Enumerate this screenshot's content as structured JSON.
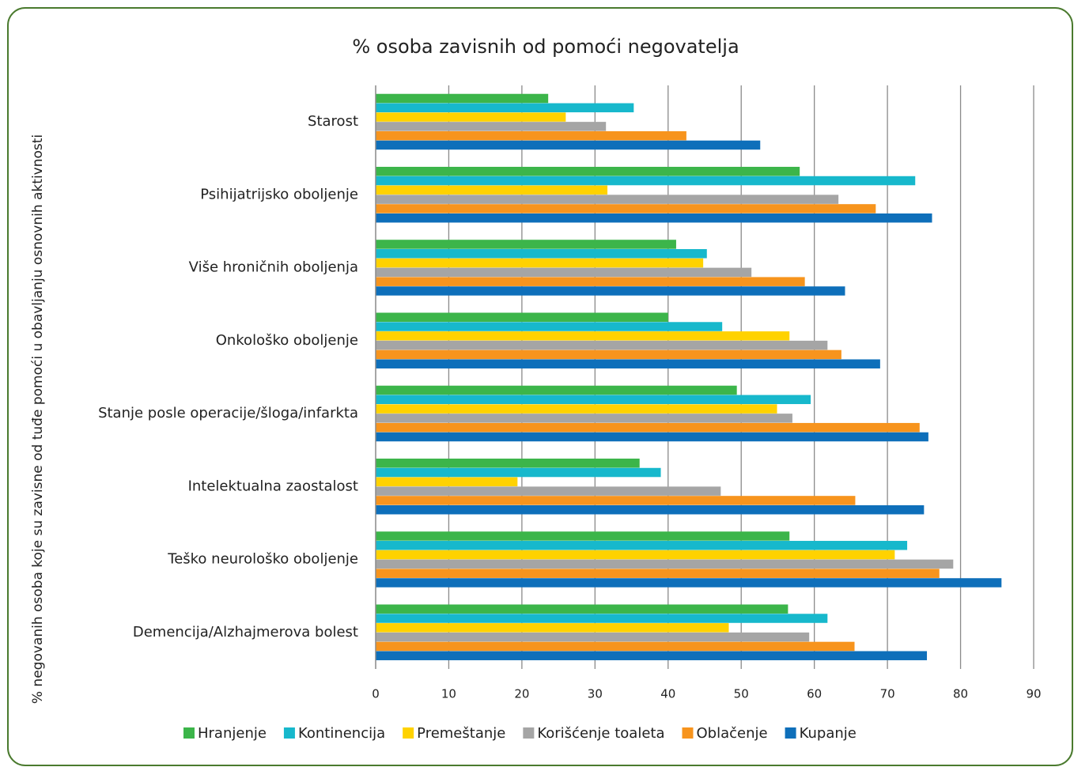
{
  "chart_data": {
    "type": "bar",
    "orientation": "horizontal",
    "title": "% osoba zavisnih od pomoći negovatelja",
    "y_label": "% negovanih osoba koje su zavisne od tuđe pomoći u obavljanju osnovnih aktivnosti",
    "categories": [
      "Starost",
      "Psihijatrijsko oboljenje",
      "Više hroničnih oboljenja",
      "Onkološko oboljenje",
      "Stanje posle operacije/šloga/infarkta",
      "Intelektualna zaostalost",
      "Teško neurološko oboljenje",
      "Demencija/Alzhajmerova bolest"
    ],
    "series": [
      {
        "name": "Hranjenje",
        "color": "#3cb54a",
        "values": [
          23.6,
          58,
          41.1,
          40,
          49.4,
          36.1,
          56.6,
          56.4
        ]
      },
      {
        "name": "Kontinencija",
        "color": "#17b8cc",
        "values": [
          35.3,
          73.8,
          45.3,
          47.4,
          59.5,
          39,
          72.7,
          61.8
        ]
      },
      {
        "name": "Premeštanje",
        "color": "#ffd200",
        "values": [
          26,
          31.7,
          44.8,
          56.6,
          54.9,
          19.4,
          71,
          48.3
        ]
      },
      {
        "name": "Korišćenje toaleta",
        "color": "#a5a5a5",
        "values": [
          31.5,
          63.3,
          51.4,
          61.8,
          57,
          47.2,
          79,
          59.3
        ]
      },
      {
        "name": "Oblačenje",
        "color": "#f7941d",
        "values": [
          42.5,
          68.4,
          58.7,
          63.7,
          74.4,
          65.6,
          77.1,
          65.5
        ]
      },
      {
        "name": "Kupanje",
        "color": "#0e6fba",
        "values": [
          52.6,
          76.1,
          64.2,
          69,
          75.6,
          75,
          85.6,
          75.4
        ]
      }
    ],
    "xlim": [
      0,
      90
    ],
    "xticks": [
      0,
      10,
      20,
      30,
      40,
      50,
      60,
      70,
      80,
      90
    ],
    "grid": true,
    "legend": "bottom"
  }
}
